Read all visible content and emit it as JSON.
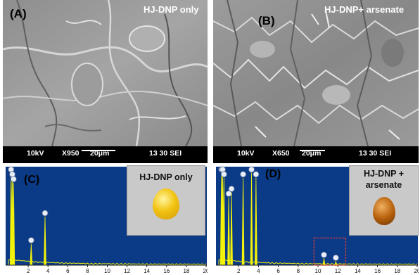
{
  "panels": {
    "a": {
      "letter": "(A)",
      "sample": "HJ-DNP only",
      "sem": {
        "voltage": "10kV",
        "magnification": "X950",
        "scale": "20μm",
        "info": "13 30 SEI"
      }
    },
    "b": {
      "letter": "(B)",
      "sample": "HJ-DNP+ arsenate",
      "sem": {
        "voltage": "10kV",
        "magnification": "X650",
        "scale": "20μm",
        "info": "13 30 SEI"
      }
    },
    "c": {
      "letter": "(C)",
      "inset_label": "HJ-DNP only"
    },
    "d": {
      "letter": "(D)",
      "inset_label_line1": "HJ-DNP +",
      "inset_label_line2": "arsenate"
    }
  },
  "colors": {
    "eds_background": "#0b3a86",
    "spectrum_yellow": "#f2f20a",
    "sem_bar": "#000000",
    "highlight_box": "#e03b3b",
    "drop_c": "#f2c414",
    "drop_d": "#b8620c"
  },
  "chart_data": [
    {
      "type": "line",
      "panel": "C",
      "xlim": [
        0,
        20
      ],
      "x_ticks": [
        "2",
        "4",
        "6",
        "8",
        "10",
        "12",
        "14",
        "16",
        "18",
        "20"
      ],
      "peaks": [
        {
          "x": 0.27,
          "height": 1.0
        },
        {
          "x": 0.39,
          "height": 0.9
        },
        {
          "x": 0.52,
          "height": 0.85
        },
        {
          "x": 2.3,
          "height": 0.22
        },
        {
          "x": 3.7,
          "height": 0.5
        }
      ]
    },
    {
      "type": "line",
      "panel": "D",
      "xlim": [
        0,
        20
      ],
      "x_ticks": [
        "2",
        "4",
        "6",
        "8",
        "10",
        "12",
        "14",
        "16",
        "18",
        "20"
      ],
      "peaks": [
        {
          "x": 0.27,
          "height": 1.0
        },
        {
          "x": 0.39,
          "height": 0.95
        },
        {
          "x": 0.52,
          "height": 0.9
        },
        {
          "x": 1.0,
          "height": 0.7
        },
        {
          "x": 1.28,
          "height": 0.75
        },
        {
          "x": 2.45,
          "height": 0.9
        },
        {
          "x": 3.3,
          "height": 0.95
        },
        {
          "x": 3.75,
          "height": 0.9
        },
        {
          "x": 10.6,
          "height": 0.07
        },
        {
          "x": 11.8,
          "height": 0.04
        }
      ]
    }
  ]
}
